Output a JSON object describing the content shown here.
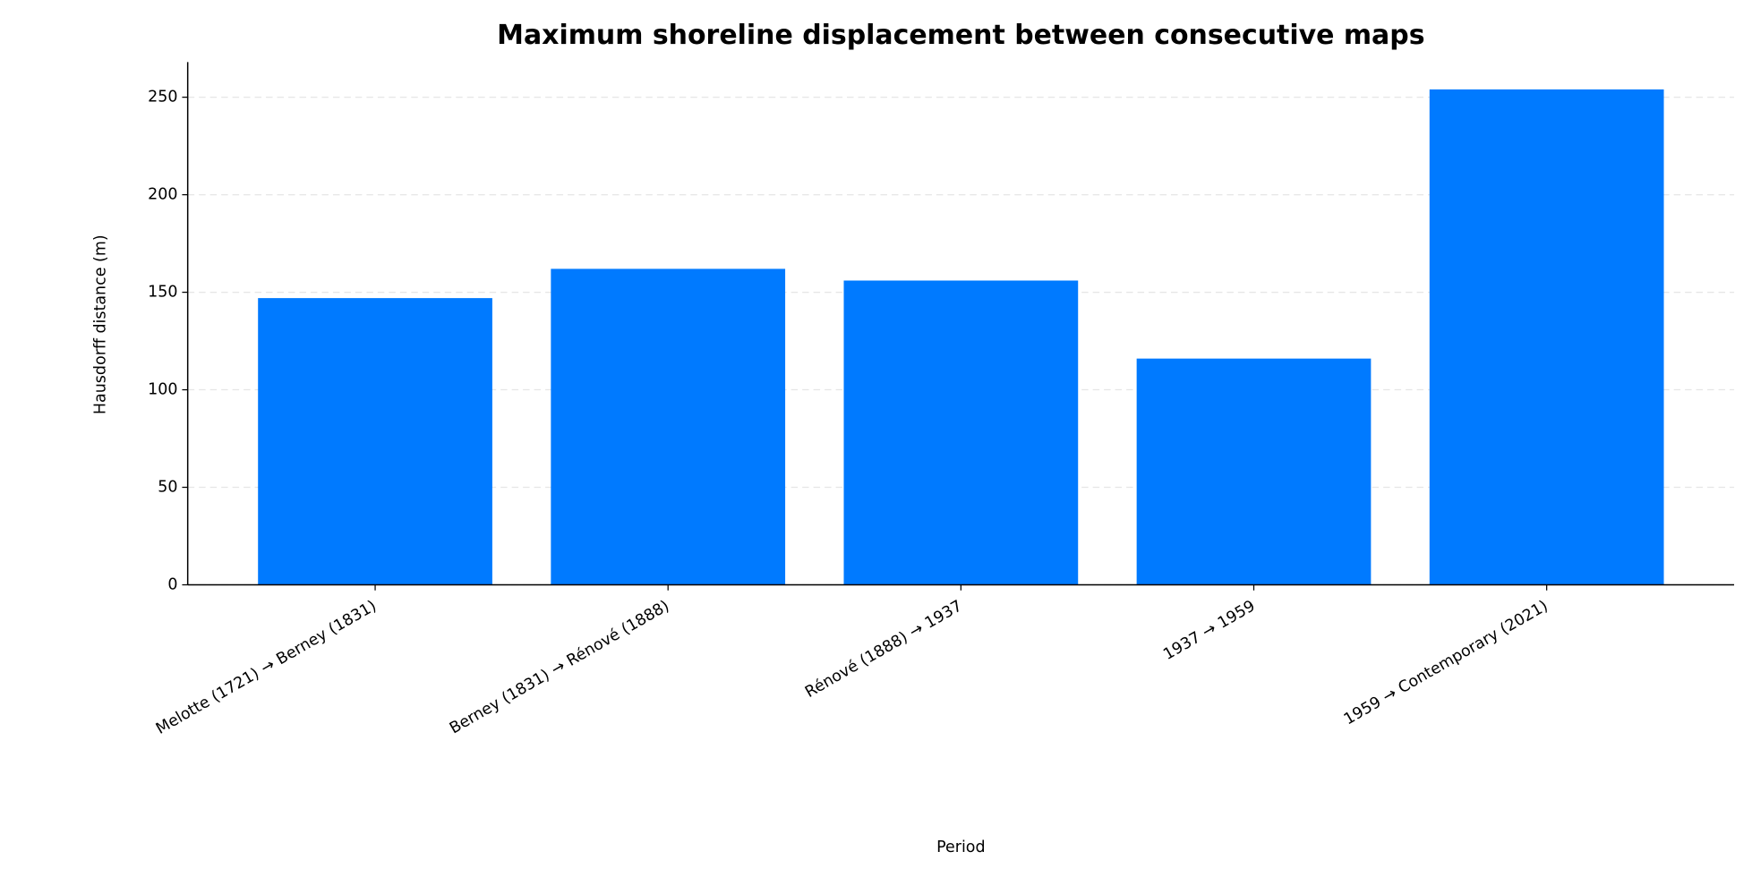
{
  "chart_data": {
    "type": "bar",
    "title": "Maximum shoreline displacement between consecutive maps",
    "x_label": "Period",
    "y_label": "Hausdorff distance (m)",
    "categories": [
      "Melotte (1721) → Berney (1831)",
      "Berney (1831) → Rénové (1888)",
      "Rénové (1888) → 1937",
      "1937 → 1959",
      "1959 → Contemporary (2021)"
    ],
    "values": [
      147,
      162,
      156,
      116,
      254
    ],
    "color": "#007aff",
    "ylim": [
      0,
      268
    ],
    "yticks": [
      0,
      50,
      100,
      150,
      200,
      250
    ],
    "grid": true
  }
}
